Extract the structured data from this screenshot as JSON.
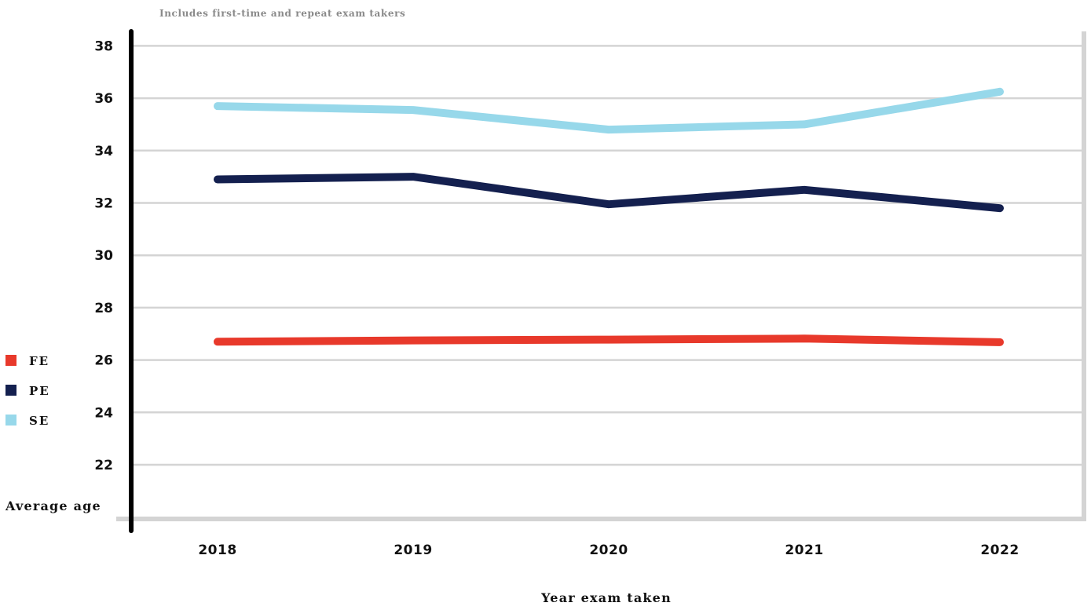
{
  "chart_data": {
    "type": "line",
    "subtitle": "Includes first-time and repeat exam takers",
    "xlabel": "Year exam taken",
    "ylabel": "Average age",
    "x": [
      "2018",
      "2019",
      "2020",
      "2021",
      "2022"
    ],
    "ylim": [
      20,
      38.5
    ],
    "yticks": [
      22,
      24,
      26,
      28,
      30,
      32,
      34,
      36,
      38
    ],
    "grid": true,
    "legend_position": "left",
    "series": [
      {
        "name": "FE",
        "color": "#e8392b",
        "values": [
          26.7,
          26.75,
          26.78,
          26.82,
          26.68
        ]
      },
      {
        "name": "PE",
        "color": "#14204f",
        "values": [
          32.9,
          33.0,
          31.95,
          32.5,
          31.8
        ]
      },
      {
        "name": "SE",
        "color": "#97d8ea",
        "values": [
          35.7,
          35.55,
          34.8,
          35.0,
          36.25
        ]
      }
    ]
  }
}
